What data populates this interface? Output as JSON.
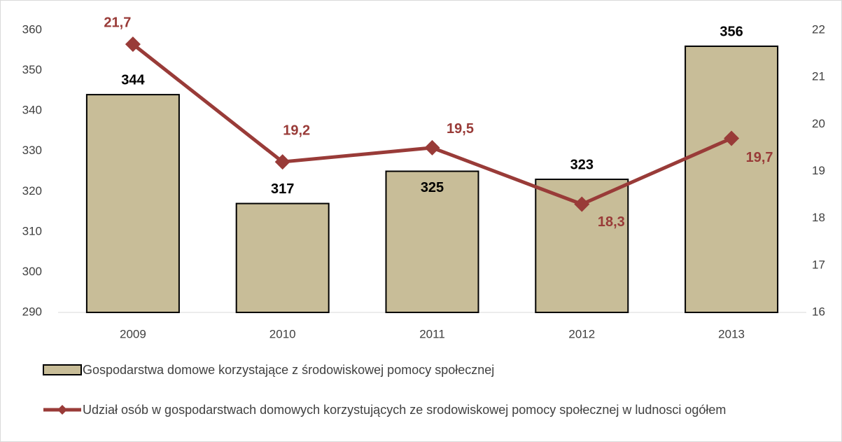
{
  "chart_data": {
    "type": "combo",
    "categories": [
      "2009",
      "2010",
      "2011",
      "2012",
      "2013"
    ],
    "series": [
      {
        "name": "Gospodarstwa domowe korzystające z środowiskowej  pomocy społecznej",
        "type": "bar",
        "color": "#c8bd98",
        "values": [
          344,
          317,
          325,
          323,
          356
        ]
      },
      {
        "name": "Udział osób w gospodarstwach domowych korzystujących ze srodowiskowej pomocy społecznej w ludnosci ogółem",
        "type": "line",
        "axis": "y2",
        "color": "#993b38",
        "values": [
          21.7,
          19.2,
          19.5,
          18.3,
          19.7
        ],
        "value_labels": [
          "21,7",
          "19,2",
          "19,5",
          "18,3",
          "19,7"
        ]
      }
    ],
    "ylim": [
      290,
      360
    ],
    "yticks": [
      290,
      300,
      310,
      320,
      330,
      340,
      350,
      360
    ],
    "y2lim": [
      16,
      22
    ],
    "y2ticks": [
      16,
      17,
      18,
      19,
      20,
      21,
      22
    ],
    "grid": false,
    "legend": "bottom"
  }
}
